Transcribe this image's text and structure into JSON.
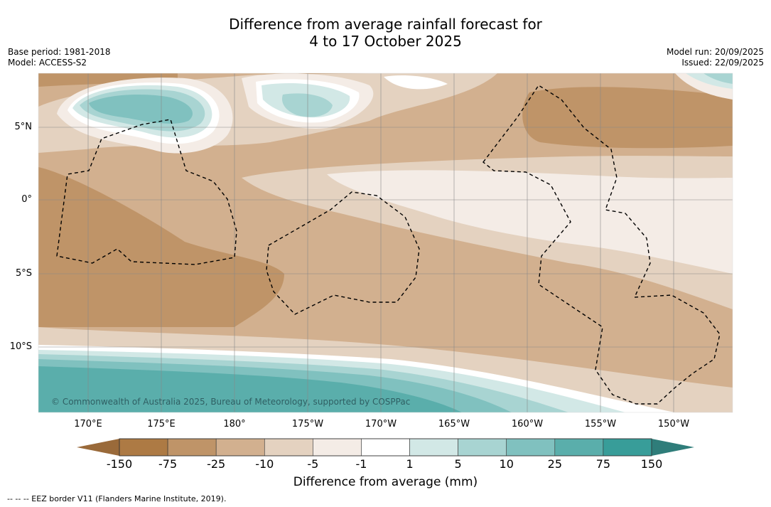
{
  "header": {
    "title_line1": "Difference from average rainfall forecast for",
    "title_line2": "4 to 17 October 2025",
    "base_period": "Base period: 1981-2018",
    "model": "Model: ACCESS-S2",
    "model_run": "Model run: 20/09/2025",
    "issued": "Issued: 22/09/2025"
  },
  "map": {
    "lat_labels": [
      "5°N",
      "0°",
      "5°S",
      "10°S"
    ],
    "lon_labels": [
      "170°E",
      "175°E",
      "180°",
      "175°W",
      "170°W",
      "165°W",
      "160°W",
      "155°W",
      "150°W"
    ],
    "copyright": "© Commonwealth of Australia 2025, Bureau of Meteorology, supported by COSPPac"
  },
  "colorbar": {
    "title": "Difference from average (mm)",
    "labels": [
      "-150",
      "-75",
      "-25",
      "-10",
      "-5",
      "-1",
      "1",
      "5",
      "10",
      "25",
      "75",
      "150"
    ],
    "colors": [
      "#ad7a44",
      "#bf9468",
      "#d2b08f",
      "#e4d2c0",
      "#f4ece6",
      "#ffffff",
      "#d2e8e6",
      "#a8d4d2",
      "#80c1bf",
      "#5aaeab",
      "#389d99"
    ],
    "low_arrow_color": "#9a6a3a",
    "high_arrow_color": "#2f7d7a"
  },
  "footer": {
    "note": "--  --  -- EEZ border V11 (Flanders Marine Institute, 2019)."
  }
}
